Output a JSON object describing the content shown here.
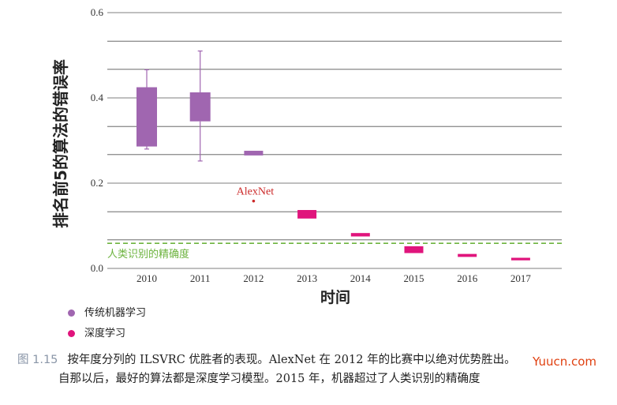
{
  "chart_data": {
    "type": "box",
    "xlabel": "时间",
    "ylabel": "排名前5的算法的错误率",
    "ylim": [
      0,
      0.6
    ],
    "yticks": [
      "0.0",
      "0.2",
      "0.4",
      "0.6"
    ],
    "grid_values": [
      0.0,
      0.067,
      0.133,
      0.2,
      0.267,
      0.333,
      0.4,
      0.467,
      0.533,
      0.6
    ],
    "categories": [
      "2010",
      "2011",
      "2012",
      "2013",
      "2014",
      "2015",
      "2016",
      "2017"
    ],
    "series": [
      {
        "name": "传统机器学习",
        "color": "#a066b0",
        "boxes": [
          {
            "year": "2010",
            "min": 0.28,
            "q1": 0.286,
            "q3": 0.425,
            "max": 0.466
          },
          {
            "year": "2011",
            "min": 0.252,
            "q1": 0.345,
            "q3": 0.413,
            "max": 0.51
          },
          {
            "year": "2012",
            "min": 0.265,
            "q1": 0.265,
            "q3": 0.276,
            "max": 0.276
          }
        ]
      },
      {
        "name": "深度学习",
        "color": "#e0147c",
        "boxes": [
          {
            "year": "2013",
            "min": 0.117,
            "q1": 0.117,
            "q3": 0.137,
            "max": 0.137
          },
          {
            "year": "2014",
            "min": 0.075,
            "q1": 0.075,
            "q3": 0.083,
            "max": 0.083
          },
          {
            "year": "2015",
            "min": 0.036,
            "q1": 0.036,
            "q3": 0.052,
            "max": 0.052
          },
          {
            "year": "2016",
            "min": 0.027,
            "q1": 0.027,
            "q3": 0.034,
            "max": 0.034
          },
          {
            "year": "2017",
            "min": 0.019,
            "q1": 0.019,
            "q3": 0.025,
            "max": 0.025
          }
        ]
      }
    ],
    "alexnet": {
      "label": "AlexNet",
      "x": 2012,
      "y": 0.158,
      "color": "#cc2a2a"
    },
    "human_line": {
      "label": "人类识别的精确度",
      "y": 0.059,
      "color": "#6db33f"
    }
  },
  "legend": {
    "traditional": "传统机器学习",
    "deep": "深度学习"
  },
  "caption": {
    "fig_num": "图 1.15",
    "line1": "按年度分列的 ILSVRC 优胜者的表现。AlexNet 在 2012 年的比赛中以绝对优势胜出。",
    "line2": "自那以后，最好的算法都是深度学习模型。2015 年，机器超过了人类识别的精确度"
  },
  "watermark": "Yuucn.com"
}
